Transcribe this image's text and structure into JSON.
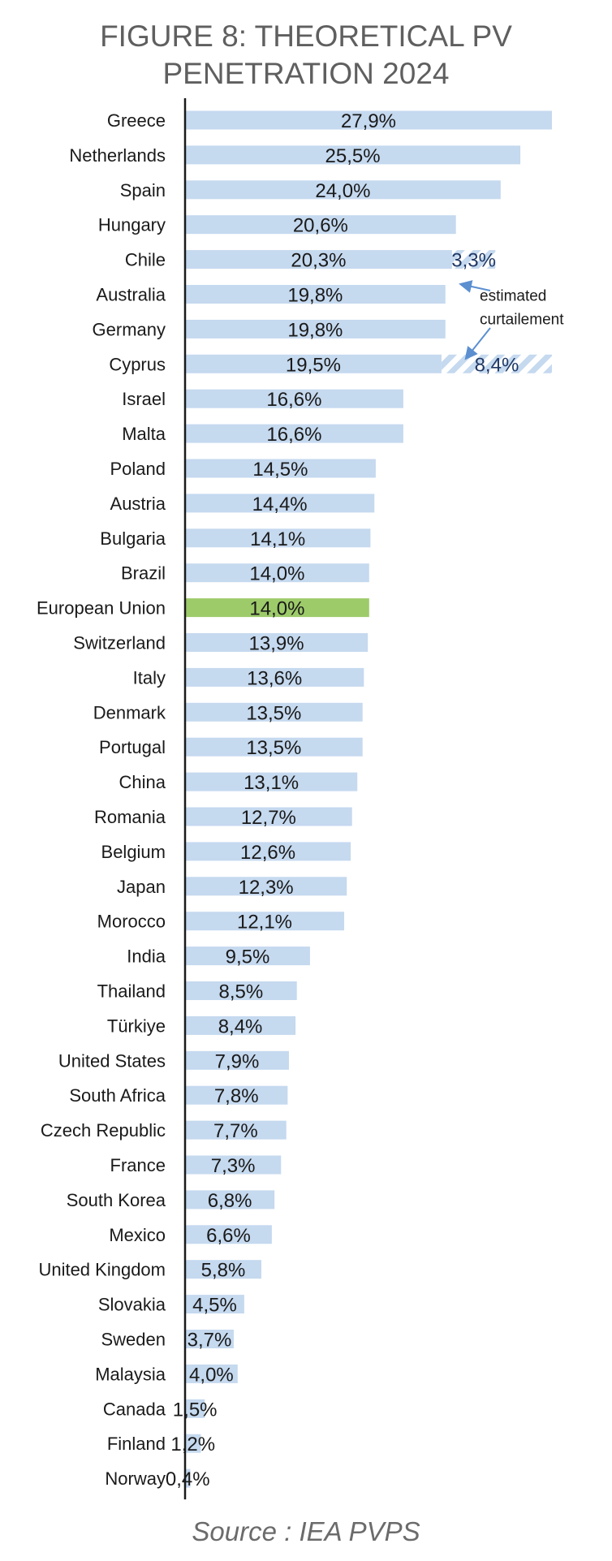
{
  "title_lines": [
    "FIGURE 8: THEORETICAL PV",
    "PENETRATION 2024"
  ],
  "source": "Source : IEA PVPS",
  "colors": {
    "bar": "#c5d9ef",
    "highlight": "#9dcb6a",
    "axis": "#1a1a1a",
    "label": "#1a1a1a",
    "annotation_text": "#1f3864",
    "arrow": "#5b8fd0",
    "hatch": "#c5d9ef"
  },
  "annotation": {
    "lines": [
      "estimated",
      "curtailement"
    ]
  },
  "chart_data": {
    "type": "bar",
    "orientation": "horizontal",
    "title": "FIGURE 8: THEORETICAL PV PENETRATION 2024",
    "xlabel": "",
    "ylabel": "",
    "xlim": [
      0,
      30
    ],
    "grid": false,
    "categories": [
      "Greece",
      "Netherlands",
      "Spain",
      "Hungary",
      "Chile",
      "Australia",
      "Germany",
      "Cyprus",
      "Israel",
      "Malta",
      "Poland",
      "Austria",
      "Bulgaria",
      "Brazil",
      "European Union",
      "Switzerland",
      "Italy",
      "Denmark",
      "Portugal",
      "China",
      "Romania",
      "Belgium",
      "Japan",
      "Morocco",
      "India",
      "Thailand",
      "Türkiye",
      "United States",
      "South Africa",
      "Czech Republic",
      "France",
      "South Korea",
      "Mexico",
      "United Kingdom",
      "Slovakia",
      "Sweden",
      "Malaysia",
      "Canada",
      "Finland",
      "Norway"
    ],
    "values": [
      27.9,
      25.5,
      24.0,
      20.6,
      20.3,
      19.8,
      19.8,
      19.5,
      16.6,
      16.6,
      14.5,
      14.4,
      14.1,
      14.0,
      14.0,
      13.9,
      13.6,
      13.5,
      13.5,
      13.1,
      12.7,
      12.6,
      12.3,
      12.1,
      9.5,
      8.5,
      8.4,
      7.9,
      7.8,
      7.7,
      7.3,
      6.8,
      6.6,
      5.8,
      4.5,
      3.7,
      4.0,
      1.5,
      1.2,
      0.4
    ],
    "labels": [
      "27,9%",
      "25,5%",
      "24,0%",
      "20,6%",
      "20,3%",
      "19,8%",
      "19,8%",
      "19,5%",
      "16,6%",
      "16,6%",
      "14,5%",
      "14,4%",
      "14,1%",
      "14,0%",
      "14,0%",
      "13,9%",
      "13,6%",
      "13,5%",
      "13,5%",
      "13,1%",
      "12,7%",
      "12,6%",
      "12,3%",
      "12,1%",
      "9,5%",
      "8,5%",
      "8,4%",
      "7,9%",
      "7,8%",
      "7,7%",
      "7,3%",
      "6,8%",
      "6,6%",
      "5,8%",
      "4,5%",
      "3,7%",
      "4,0%",
      "1,5%",
      "1,2%",
      "0,4%"
    ],
    "highlight": "European Union",
    "stacked_curtailment": [
      {
        "category": "Chile",
        "value": 3.3,
        "label": "3,3%"
      },
      {
        "category": "Cyprus",
        "value": 8.4,
        "label": "8,4%"
      }
    ]
  }
}
